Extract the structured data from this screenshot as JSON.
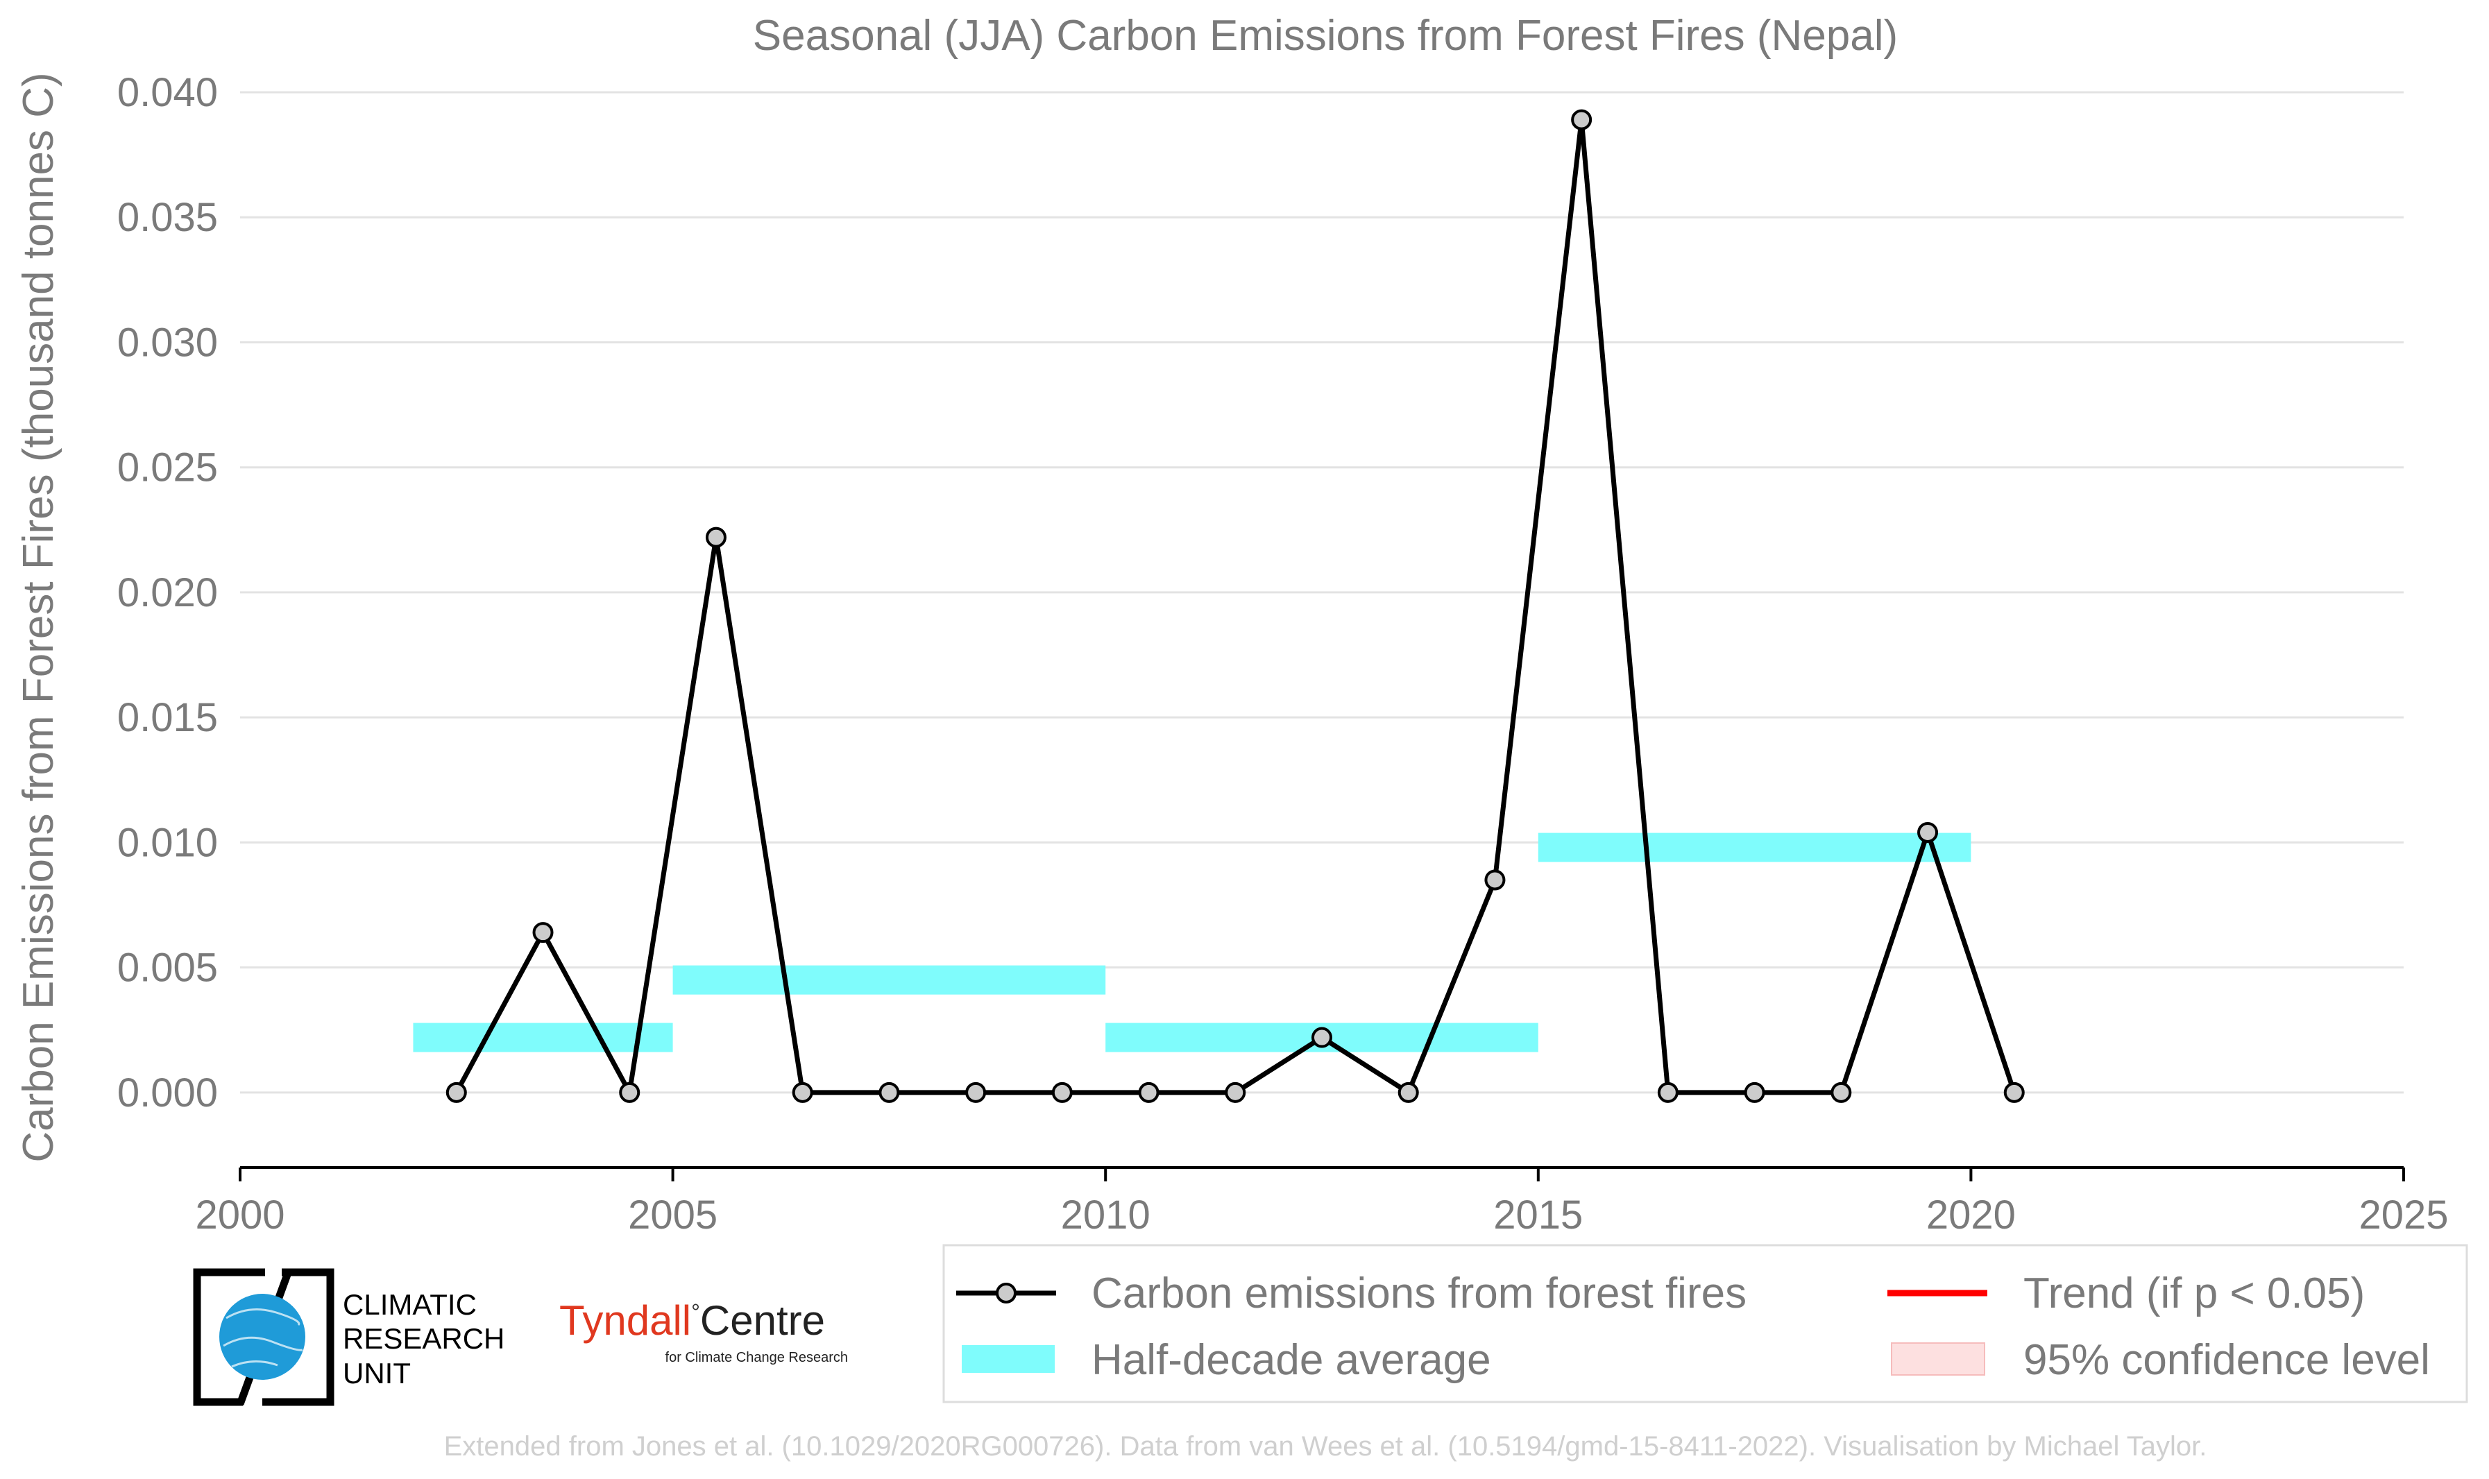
{
  "chart_data": {
    "type": "line",
    "title": "Seasonal (JJA) Carbon Emissions from Forest Fires (Nepal)",
    "ylabel": "Carbon Emissions from Forest Fires (thousand tonnes C)",
    "xlim": [
      2000,
      2025
    ],
    "ylim": [
      -0.003,
      0.04
    ],
    "x_ticks": [
      2000,
      2005,
      2010,
      2015,
      2020,
      2025
    ],
    "y_ticks": [
      "0.000",
      "0.005",
      "0.010",
      "0.015",
      "0.020",
      "0.025",
      "0.030",
      "0.035",
      "0.040"
    ],
    "grid": "horizontal",
    "series": [
      {
        "name": "Carbon emissions from forest fires",
        "color": "#000000",
        "marker_fill": "#cccccc",
        "x": [
          2002.5,
          2003.5,
          2004.5,
          2005.5,
          2006.5,
          2007.5,
          2008.5,
          2009.5,
          2010.5,
          2011.5,
          2012.5,
          2013.5,
          2014.5,
          2015.5,
          2016.5,
          2017.5,
          2018.5,
          2019.5,
          2020.5
        ],
        "y": [
          0.0,
          0.0064,
          0.0,
          0.0222,
          0.0,
          0.0,
          0.0,
          0.0,
          0.0,
          0.0,
          0.0022,
          0.0,
          0.0085,
          0.0389,
          0.0,
          0.0,
          0.0,
          0.0104,
          0.0
        ]
      }
    ],
    "half_decade_average": {
      "name": "Half-decade average",
      "color": "#7ffcfc",
      "segments": [
        {
          "x0": 2002,
          "x1": 2005,
          "y": 0.0022
        },
        {
          "x0": 2005,
          "x1": 2010,
          "y": 0.0045
        },
        {
          "x0": 2010,
          "x1": 2015,
          "y": 0.0022
        },
        {
          "x0": 2015,
          "x1": 2020,
          "y": 0.0098
        }
      ]
    },
    "legend": {
      "placement": "bottom-right",
      "entries": [
        "Carbon emissions from forest fires",
        "Trend (if p < 0.05)",
        "Half-decade average",
        "95% confidence level"
      ]
    },
    "trend_color": "#ff0000",
    "confidence_color": "#fde0e0"
  },
  "logos": {
    "cru": [
      "CLIMATIC",
      "RESEARCH",
      "UNIT"
    ],
    "tyndall_main": "Tyndall",
    "tyndall_centre": "Centre",
    "tyndall_sub": "for Climate Change Research"
  },
  "credit": "Extended from Jones et al. (10.1029/2020RG000726). Data from van Wees et al. (10.5194/gmd-15-8411-2022). Visualisation by Michael Taylor."
}
